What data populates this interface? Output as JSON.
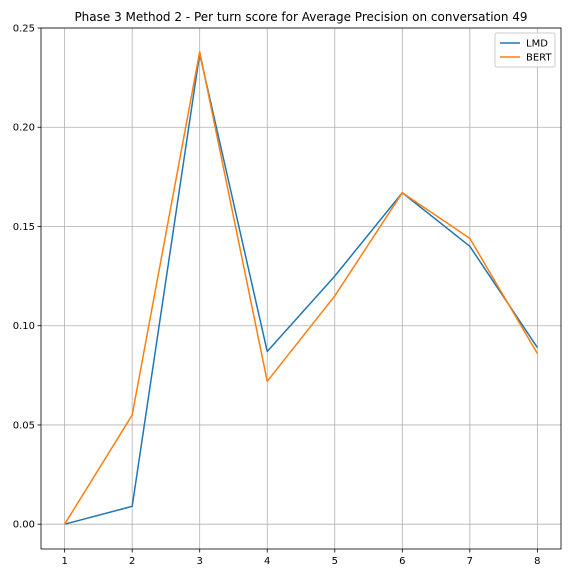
{
  "chart_data": {
    "type": "line",
    "title": "Phase 3 Method 2 - Per turn score for Average Precision on conversation 49",
    "xlabel": "",
    "ylabel": "",
    "x": [
      1,
      2,
      3,
      4,
      5,
      6,
      7,
      8
    ],
    "xlim": [
      0.65,
      8.35
    ],
    "ylim": [
      -0.0125,
      0.25
    ],
    "xticks": [
      1,
      2,
      3,
      4,
      5,
      6,
      7,
      8
    ],
    "yticks": [
      0.0,
      0.05,
      0.1,
      0.15,
      0.2,
      0.25
    ],
    "ytick_labels": [
      "0.00",
      "0.05",
      "0.10",
      "0.15",
      "0.20",
      "0.25"
    ],
    "grid": true,
    "legend_position": "top-right",
    "series": [
      {
        "name": "LMD",
        "color": "#1f77b4",
        "values": [
          0.0,
          0.009,
          0.237,
          0.087,
          0.125,
          0.167,
          0.14,
          0.089
        ]
      },
      {
        "name": "BERT",
        "color": "#ff7f0e",
        "values": [
          0.0,
          0.055,
          0.238,
          0.072,
          0.115,
          0.167,
          0.144,
          0.086
        ]
      }
    ]
  }
}
